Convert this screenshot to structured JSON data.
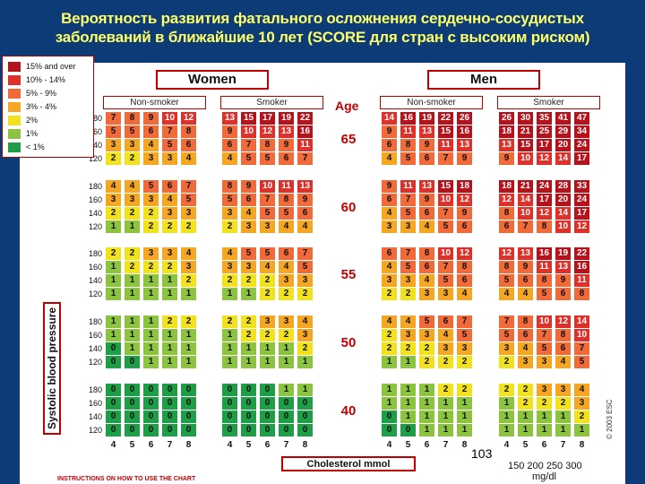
{
  "slide": {
    "title_line1": "Вероятность развития фатального осложнения сердечно-сосудистых",
    "title_line2": "заболеваний в ближайшие 10 лет (SCORE для стран с высоким риском)"
  },
  "legend": [
    {
      "label": "15% and over",
      "color": "#b5121b"
    },
    {
      "label": "10% - 14%",
      "color": "#e0302a"
    },
    {
      "label": "5% - 9%",
      "color": "#f06a3a"
    },
    {
      "label": "3% - 4%",
      "color": "#f5a623"
    },
    {
      "label": "2%",
      "color": "#f2e11d"
    },
    {
      "label": "1%",
      "color": "#8cc43f"
    },
    {
      "label": "< 1%",
      "color": "#1f9e48"
    }
  ],
  "headers": {
    "women": "Women",
    "men": "Men",
    "non_smoker": "Non-smoker",
    "smoker": "Smoker",
    "age": "Age"
  },
  "y_title": "Systolic blood pressure",
  "x_title": "Cholesterol mmol",
  "page_number": "103",
  "mg_ticks": "150 200 250 300",
  "mg_unit": "mg/dl",
  "copyright": "© 2003 ESC",
  "instructions": "INSTRUCTIONS ON HOW TO USE THE CHART",
  "chart_data": {
    "type": "heatmap",
    "title": "",
    "x_label": "Cholesterol mmol",
    "y_label": "Systolic blood pressure",
    "cholesterol": [
      "4",
      "5",
      "6",
      "7",
      "8"
    ],
    "sbp": [
      "180",
      "160",
      "140",
      "120"
    ],
    "ages": [
      "65",
      "60",
      "55",
      "50",
      "40"
    ],
    "groups": [
      "Women Non-smoker",
      "Women Smoker",
      "Men Non-smoker",
      "Men Smoker"
    ],
    "values": {
      "65": [
        [
          [
            7,
            8,
            9,
            10,
            12
          ],
          [
            5,
            5,
            6,
            7,
            8
          ],
          [
            3,
            3,
            4,
            5,
            6
          ],
          [
            2,
            2,
            3,
            3,
            4
          ]
        ],
        [
          [
            13,
            15,
            17,
            19,
            22
          ],
          [
            9,
            10,
            12,
            13,
            16
          ],
          [
            6,
            7,
            8,
            9,
            11
          ],
          [
            4,
            5,
            5,
            6,
            7
          ]
        ],
        [
          [
            14,
            16,
            19,
            22,
            26
          ],
          [
            9,
            11,
            13,
            15,
            16
          ],
          [
            6,
            8,
            9,
            11,
            13
          ],
          [
            4,
            5,
            6,
            7,
            9
          ]
        ],
        [
          [
            26,
            30,
            35,
            41,
            47
          ],
          [
            18,
            21,
            25,
            29,
            34
          ],
          [
            13,
            15,
            17,
            20,
            24
          ],
          [
            9,
            10,
            12,
            14,
            17
          ]
        ]
      ],
      "60": [
        [
          [
            4,
            4,
            5,
            6,
            7
          ],
          [
            3,
            3,
            3,
            4,
            5
          ],
          [
            2,
            2,
            2,
            3,
            3
          ],
          [
            1,
            1,
            2,
            2,
            2
          ]
        ],
        [
          [
            8,
            9,
            10,
            11,
            13
          ],
          [
            5,
            6,
            7,
            8,
            9
          ],
          [
            3,
            4,
            5,
            5,
            6
          ],
          [
            2,
            3,
            3,
            4,
            4
          ]
        ],
        [
          [
            9,
            11,
            13,
            15,
            18
          ],
          [
            6,
            7,
            9,
            10,
            12
          ],
          [
            4,
            5,
            6,
            7,
            9
          ],
          [
            3,
            3,
            4,
            5,
            6
          ]
        ],
        [
          [
            18,
            21,
            24,
            28,
            33
          ],
          [
            12,
            14,
            17,
            20,
            24
          ],
          [
            8,
            10,
            12,
            14,
            17
          ],
          [
            6,
            7,
            8,
            10,
            12
          ]
        ]
      ],
      "55": [
        [
          [
            2,
            2,
            3,
            3,
            4
          ],
          [
            1,
            2,
            2,
            2,
            3
          ],
          [
            1,
            1,
            1,
            1,
            2
          ],
          [
            1,
            1,
            1,
            1,
            1
          ]
        ],
        [
          [
            4,
            5,
            5,
            6,
            7
          ],
          [
            3,
            3,
            4,
            4,
            5
          ],
          [
            2,
            2,
            2,
            3,
            3
          ],
          [
            1,
            1,
            2,
            2,
            2
          ]
        ],
        [
          [
            6,
            7,
            8,
            10,
            12
          ],
          [
            4,
            5,
            6,
            7,
            8
          ],
          [
            3,
            3,
            4,
            5,
            6
          ],
          [
            2,
            2,
            3,
            3,
            4
          ]
        ],
        [
          [
            12,
            13,
            16,
            19,
            22
          ],
          [
            8,
            9,
            11,
            13,
            16
          ],
          [
            5,
            6,
            8,
            9,
            11
          ],
          [
            4,
            4,
            5,
            6,
            8
          ]
        ]
      ],
      "50": [
        [
          [
            1,
            1,
            1,
            2,
            2
          ],
          [
            1,
            1,
            1,
            1,
            1
          ],
          [
            0,
            1,
            1,
            1,
            1
          ],
          [
            0,
            0,
            1,
            1,
            1
          ]
        ],
        [
          [
            2,
            2,
            3,
            3,
            4
          ],
          [
            1,
            2,
            2,
            2,
            3
          ],
          [
            1,
            1,
            1,
            1,
            2
          ],
          [
            1,
            1,
            1,
            1,
            1
          ]
        ],
        [
          [
            4,
            4,
            5,
            6,
            7
          ],
          [
            2,
            3,
            3,
            4,
            5
          ],
          [
            2,
            2,
            2,
            3,
            3
          ],
          [
            1,
            1,
            2,
            2,
            2
          ]
        ],
        [
          [
            7,
            8,
            10,
            12,
            14
          ],
          [
            5,
            6,
            7,
            8,
            10
          ],
          [
            3,
            4,
            5,
            6,
            7
          ],
          [
            2,
            3,
            3,
            4,
            5
          ]
        ]
      ],
      "40": [
        [
          [
            0,
            0,
            0,
            0,
            0
          ],
          [
            0,
            0,
            0,
            0,
            0
          ],
          [
            0,
            0,
            0,
            0,
            0
          ],
          [
            0,
            0,
            0,
            0,
            0
          ]
        ],
        [
          [
            0,
            0,
            0,
            1,
            1
          ],
          [
            0,
            0,
            0,
            0,
            0
          ],
          [
            0,
            0,
            0,
            0,
            0
          ],
          [
            0,
            0,
            0,
            0,
            0
          ]
        ],
        [
          [
            1,
            1,
            1,
            2,
            2
          ],
          [
            1,
            1,
            1,
            1,
            1
          ],
          [
            0,
            1,
            1,
            1,
            1
          ],
          [
            0,
            0,
            1,
            1,
            1
          ]
        ],
        [
          [
            2,
            2,
            3,
            3,
            4
          ],
          [
            1,
            2,
            2,
            2,
            3
          ],
          [
            1,
            1,
            1,
            1,
            2
          ],
          [
            1,
            1,
            1,
            1,
            1
          ]
        ]
      ]
    }
  }
}
